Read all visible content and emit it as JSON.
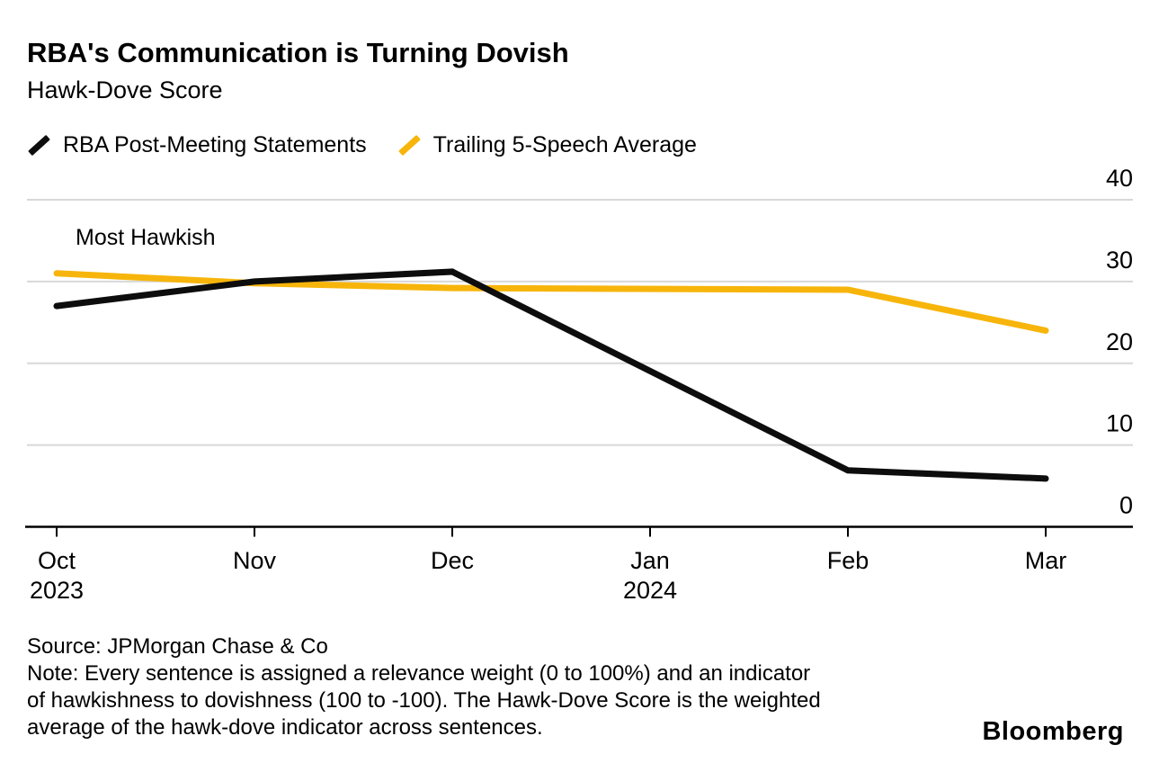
{
  "header": {
    "title": "RBA's Communication is Turning Dovish",
    "subtitle": "Hawk-Dove Score"
  },
  "legend": {
    "items": [
      {
        "label": "RBA Post-Meeting Statements",
        "swatch": "black-slash"
      },
      {
        "label": "Trailing 5-Speech Average",
        "swatch": "yellow-slash"
      }
    ]
  },
  "chart_data": {
    "type": "line",
    "title": "RBA's Communication is Turning Dovish",
    "subtitle": "Hawk-Dove Score",
    "annotation": "Most Hawkish",
    "x_axis": {
      "ticks": [
        {
          "label": "Oct",
          "year": "2023"
        },
        {
          "label": "Nov"
        },
        {
          "label": "Dec"
        },
        {
          "label": "Jan",
          "year": "2024"
        },
        {
          "label": "Feb"
        },
        {
          "label": "Mar"
        }
      ]
    },
    "y_axis": {
      "ticks": [
        0,
        10,
        20,
        30,
        40
      ],
      "range": [
        0,
        40
      ],
      "side": "right"
    },
    "series": [
      {
        "name": "RBA Post-Meeting Statements",
        "color": "black",
        "points": [
          {
            "t": 0,
            "month": "Oct 2023",
            "value": 27
          },
          {
            "t": 1,
            "month": "Nov 2023",
            "value": 30
          },
          {
            "t": 2,
            "month": "Dec 2023",
            "value": 31.2
          },
          {
            "t": 4,
            "month": "Feb 2024",
            "value": 6.9
          },
          {
            "t": 5,
            "month": "Mar 2024",
            "value": 5.9
          }
        ]
      },
      {
        "name": "Trailing 5-Speech Average",
        "color": "yellow",
        "points": [
          {
            "t": 0,
            "month": "Oct 2023",
            "value": 31
          },
          {
            "t": 1,
            "month": "Nov 2023",
            "value": 29.8
          },
          {
            "t": 2,
            "month": "Dec 2023",
            "value": 29.2
          },
          {
            "t": 4,
            "month": "Feb 2024",
            "value": 29
          },
          {
            "t": 5,
            "month": "Mar 2024",
            "value": 24
          }
        ]
      }
    ],
    "grid": "horizontal",
    "legend_position": "top"
  },
  "footer": {
    "source": "Source: JPMorgan Chase & Co",
    "note_lines": [
      "Note: Every sentence is assigned a relevance weight (0 to 100%) and an indicator",
      "of hawkishness to dovishness (100 to -100). The Hawk-Dove Score is the weighted",
      "average of the hawk-dove indicator across sentences."
    ],
    "brand": "Bloomberg"
  },
  "colors": {
    "series_black": "#0d0d0d",
    "series_yellow": "#f7b50b",
    "grid": "#d8d8d8",
    "axis": "#000000",
    "text": "#000000"
  }
}
